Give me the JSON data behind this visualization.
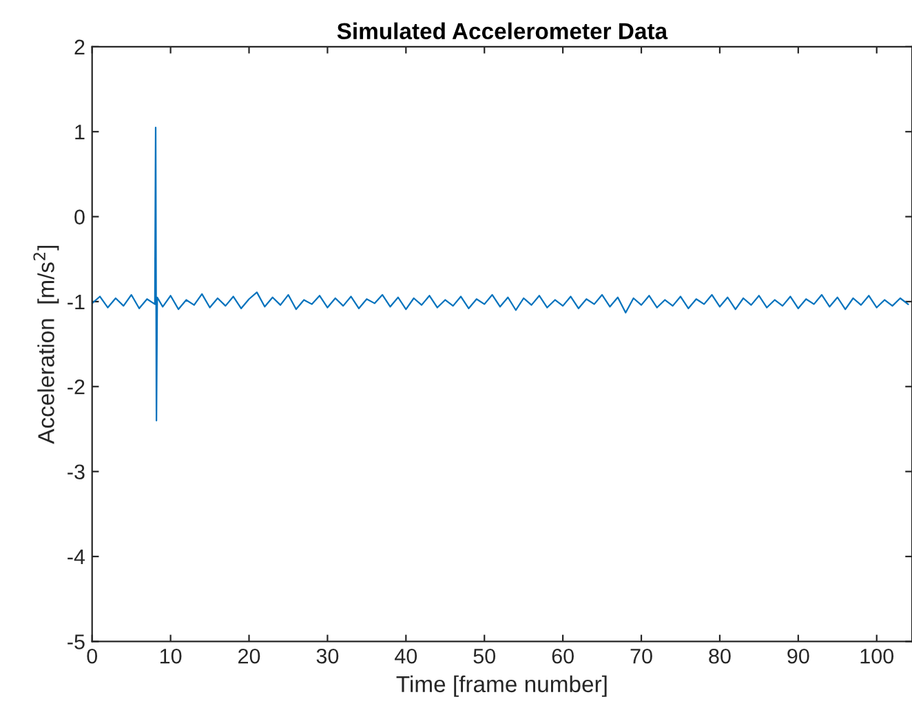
{
  "chart_data": {
    "type": "line",
    "title": "Simulated Accelerometer Data",
    "xlabel": "Time [frame number]",
    "ylabel": "Acceleration  [m/s$^{2}$]",
    "series": [
      {
        "color": "#0072bd",
        "x": [
          0,
          1,
          2,
          3,
          4,
          5,
          6,
          7,
          8,
          8.1,
          8.2,
          8.3,
          9,
          10,
          11,
          12,
          13,
          14,
          15,
          16,
          17,
          18,
          19,
          20,
          21,
          22,
          23,
          24,
          25,
          26,
          27,
          28,
          29,
          30,
          31,
          32,
          33,
          34,
          35,
          36,
          37,
          38,
          39,
          40,
          41,
          42,
          43,
          44,
          45,
          46,
          47,
          48,
          49,
          50,
          51,
          52,
          53,
          54,
          55,
          56,
          57,
          58,
          59,
          60,
          61,
          62,
          63,
          64,
          65,
          66,
          67,
          68,
          69,
          70,
          71,
          72,
          73,
          74,
          75,
          76,
          77,
          78,
          79,
          80,
          81,
          82,
          83,
          84,
          85,
          86,
          87,
          88,
          89,
          90,
          91,
          92,
          93,
          94,
          95,
          96,
          97,
          98,
          99,
          100,
          101,
          102,
          103,
          104
        ],
        "values": [
          -1.02,
          -0.94,
          -1.07,
          -0.96,
          -1.05,
          -0.92,
          -1.08,
          -0.97,
          -1.03,
          1.05,
          -2.4,
          -0.95,
          -1.06,
          -0.93,
          -1.09,
          -0.98,
          -1.04,
          -0.91,
          -1.07,
          -0.96,
          -1.05,
          -0.94,
          -1.08,
          -0.97,
          -0.89,
          -1.06,
          -0.95,
          -1.04,
          -0.92,
          -1.09,
          -0.98,
          -1.03,
          -0.93,
          -1.07,
          -0.96,
          -1.05,
          -0.94,
          -1.08,
          -0.97,
          -1.02,
          -0.92,
          -1.06,
          -0.95,
          -1.09,
          -0.96,
          -1.04,
          -0.93,
          -1.07,
          -0.98,
          -1.05,
          -0.94,
          -1.08,
          -0.97,
          -1.03,
          -0.92,
          -1.06,
          -0.95,
          -1.1,
          -0.96,
          -1.04,
          -0.93,
          -1.07,
          -0.98,
          -1.05,
          -0.94,
          -1.08,
          -0.97,
          -1.03,
          -0.92,
          -1.06,
          -0.95,
          -1.13,
          -0.96,
          -1.04,
          -0.93,
          -1.07,
          -0.98,
          -1.05,
          -0.94,
          -1.08,
          -0.97,
          -1.03,
          -0.92,
          -1.06,
          -0.95,
          -1.09,
          -0.96,
          -1.04,
          -0.93,
          -1.07,
          -0.98,
          -1.05,
          -0.94,
          -1.08,
          -0.97,
          -1.03,
          -0.92,
          -1.06,
          -0.95,
          -1.09,
          -0.96,
          -1.04,
          -0.93,
          -1.07,
          -0.98,
          -1.05,
          -0.96,
          -1.03
        ]
      }
    ],
    "xlim": [
      0,
      104.5
    ],
    "xticks": [
      0,
      10,
      20,
      30,
      40,
      50,
      60,
      70,
      80,
      90,
      100
    ],
    "ylim": [
      -5,
      2
    ],
    "yticks": [
      -5,
      -4,
      -3,
      -2,
      -1,
      0,
      1,
      2
    ],
    "grid": false,
    "legend": false
  }
}
